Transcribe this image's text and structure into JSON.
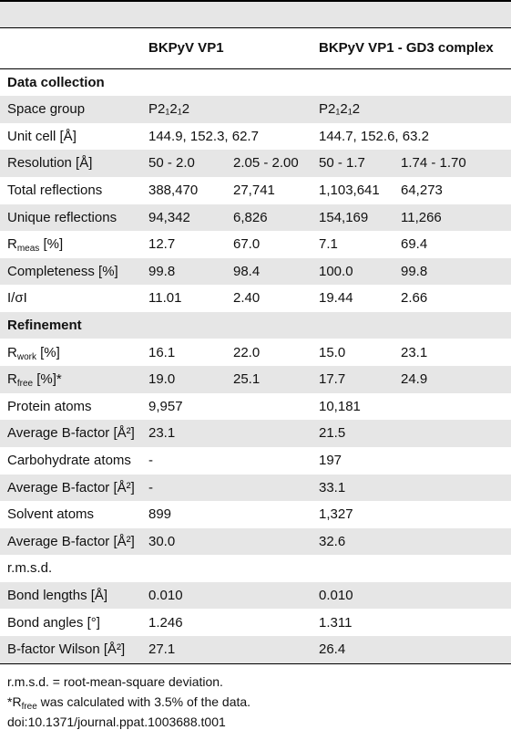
{
  "table": {
    "header": [
      "BKPyV VP1",
      "BKPyV VP1 - GD3 complex"
    ],
    "rows": [
      {
        "section": "Data collection"
      },
      {
        "label": "Space group",
        "cells": [
          "P2₁2₁2",
          null,
          "P2₁2₁2",
          null
        ]
      },
      {
        "label": "Unit cell [Å]",
        "cells": [
          "144.9, 152.3, 62.7",
          null,
          "144.7, 152.6, 63.2",
          null
        ]
      },
      {
        "label": "Resolution [Å]",
        "cells": [
          "50 - 2.0",
          "2.05 - 2.00",
          "50 - 1.7",
          "1.74 - 1.70"
        ]
      },
      {
        "label": "Total reflections",
        "cells": [
          "388,470",
          "27,741",
          "1,103,641",
          "64,273"
        ]
      },
      {
        "label": "Unique reflections",
        "cells": [
          "94,342",
          "6,826",
          "154,169",
          "11,266"
        ]
      },
      {
        "label": [
          {
            "text": "R"
          },
          {
            "sub": "meas"
          },
          {
            "text": " [%]"
          }
        ],
        "cells": [
          "12.7",
          "67.0",
          "7.1",
          "69.4"
        ]
      },
      {
        "label": "Completeness [%]",
        "cells": [
          "99.8",
          "98.4",
          "100.0",
          "99.8"
        ]
      },
      {
        "label": "I/σI",
        "cells": [
          "11.01",
          "2.40",
          "19.44",
          "2.66"
        ]
      },
      {
        "section": "Refinement"
      },
      {
        "label": [
          {
            "text": "R"
          },
          {
            "sub": "work"
          },
          {
            "text": " [%]"
          }
        ],
        "cells": [
          "16.1",
          "22.0",
          "15.0",
          "23.1"
        ]
      },
      {
        "label": [
          {
            "text": "R"
          },
          {
            "sub": "free"
          },
          {
            "text": " [%]*"
          }
        ],
        "cells": [
          "19.0",
          "25.1",
          "17.7",
          "24.9"
        ]
      },
      {
        "label": "Protein atoms",
        "cells": [
          "9,957",
          null,
          "10,181",
          null
        ]
      },
      {
        "label": "Average B-factor [Å²]",
        "cells": [
          "23.1",
          null,
          "21.5",
          null
        ]
      },
      {
        "label": "Carbohydrate atoms",
        "cells": [
          "-",
          null,
          "197",
          null
        ]
      },
      {
        "label": "Average B-factor [Å²]",
        "cells": [
          "-",
          null,
          "33.1",
          null
        ]
      },
      {
        "label": "Solvent atoms",
        "cells": [
          "899",
          null,
          "1,327",
          null
        ]
      },
      {
        "label": "Average B-factor [Å²]",
        "cells": [
          "30.0",
          null,
          "32.6",
          null
        ]
      },
      {
        "label": "r.m.s.d."
      },
      {
        "label": "Bond lengths [Å]",
        "cells": [
          "0.010",
          null,
          "0.010",
          null
        ]
      },
      {
        "label": "Bond angles [°]",
        "cells": [
          "1.246",
          null,
          "1.311",
          null
        ]
      },
      {
        "label": "B-factor Wilson [Å²]",
        "cells": [
          "27.1",
          null,
          "26.4",
          null
        ]
      }
    ],
    "footnotes": [
      "r.m.s.d. = root-mean-square deviation.",
      [
        {
          "text": "*R"
        },
        {
          "sub": "free"
        },
        {
          "text": " was calculated with 3.5% of the data."
        }
      ],
      "doi:10.1371/journal.ppat.1003688.t001"
    ]
  }
}
